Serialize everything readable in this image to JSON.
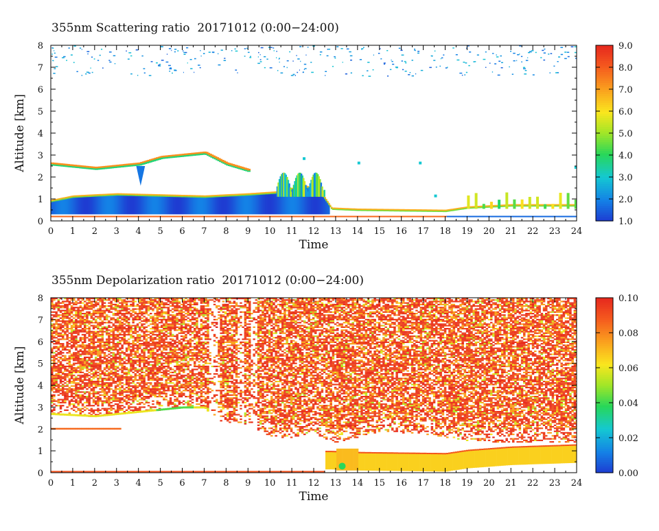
{
  "chart_data": [
    {
      "type": "heatmap",
      "title": "355nm Scattering ratio  20171012 (0:00−24:00)",
      "xlabel": "Time",
      "ylabel": "Altitude [km]",
      "x_ticks": [
        "0",
        "1",
        "2",
        "3",
        "4",
        "5",
        "6",
        "7",
        "8",
        "9",
        "10",
        "11",
        "12",
        "13",
        "14",
        "15",
        "16",
        "17",
        "18",
        "19",
        "20",
        "21",
        "22",
        "23",
        "24"
      ],
      "y_ticks": [
        "0",
        "1",
        "2",
        "3",
        "4",
        "5",
        "6",
        "7",
        "8"
      ],
      "xlim": [
        0,
        24
      ],
      "ylim": [
        0,
        8
      ],
      "colorbar": {
        "min": 1.0,
        "max": 9.0,
        "ticks": [
          "1.0",
          "2.0",
          "3.0",
          "4.0",
          "5.0",
          "6.0",
          "7.0",
          "8.0",
          "9.0"
        ]
      },
      "features": {
        "boundary_layer": [
          [
            0,
            0.9
          ],
          [
            1,
            1.1
          ],
          [
            3,
            1.2
          ],
          [
            5,
            1.15
          ],
          [
            7,
            1.1
          ],
          [
            9,
            1.2
          ],
          [
            10.5,
            1.3
          ],
          [
            11.5,
            1.6
          ],
          [
            12.3,
            1.3
          ],
          [
            12.8,
            0.55
          ],
          [
            14,
            0.5
          ],
          [
            18,
            0.45
          ],
          [
            19,
            0.6
          ],
          [
            21,
            0.7
          ],
          [
            24,
            0.7
          ]
        ],
        "elevated_layer": [
          [
            0,
            2.6
          ],
          [
            2,
            2.4
          ],
          [
            4,
            2.6
          ],
          [
            5,
            2.9
          ],
          [
            6,
            3.0
          ],
          [
            7,
            3.1
          ],
          [
            8,
            2.6
          ],
          [
            9,
            2.3
          ]
        ]
      }
    },
    {
      "type": "heatmap",
      "title": "355nm Depolarization ratio  20171012 (0:00−24:00)",
      "xlabel": "Time",
      "ylabel": "Altitude [km]",
      "x_ticks": [
        "0",
        "1",
        "2",
        "3",
        "4",
        "5",
        "6",
        "7",
        "8",
        "9",
        "10",
        "11",
        "12",
        "13",
        "14",
        "15",
        "16",
        "17",
        "18",
        "19",
        "20",
        "21",
        "22",
        "23",
        "24"
      ],
      "y_ticks": [
        "0",
        "1",
        "2",
        "3",
        "4",
        "5",
        "6",
        "7",
        "8"
      ],
      "xlim": [
        0,
        24
      ],
      "ylim": [
        0,
        8
      ],
      "colorbar": {
        "min": 0.0,
        "max": 0.1,
        "ticks": [
          "0.00",
          "0.02",
          "0.04",
          "0.06",
          "0.08",
          "0.10"
        ]
      },
      "features": {
        "noise_floor": [
          [
            0,
            2.7
          ],
          [
            2,
            2.6
          ],
          [
            4,
            2.8
          ],
          [
            6,
            3.0
          ],
          [
            7,
            3.0
          ],
          [
            7.5,
            2.4
          ],
          [
            9,
            2.2
          ],
          [
            10,
            1.7
          ],
          [
            11,
            1.6
          ],
          [
            12,
            1.9
          ],
          [
            12.5,
            1.5
          ],
          [
            13,
            1.4
          ],
          [
            15,
            1.9
          ],
          [
            17,
            1.8
          ],
          [
            19,
            1.5
          ],
          [
            21,
            1.4
          ],
          [
            24,
            1.4
          ]
        ],
        "lower_layer": [
          [
            12.8,
            0.4
          ],
          [
            14,
            0.35
          ],
          [
            18,
            0.3
          ],
          [
            19,
            0.45
          ],
          [
            21,
            0.6
          ],
          [
            24,
            0.7
          ]
        ]
      }
    }
  ]
}
